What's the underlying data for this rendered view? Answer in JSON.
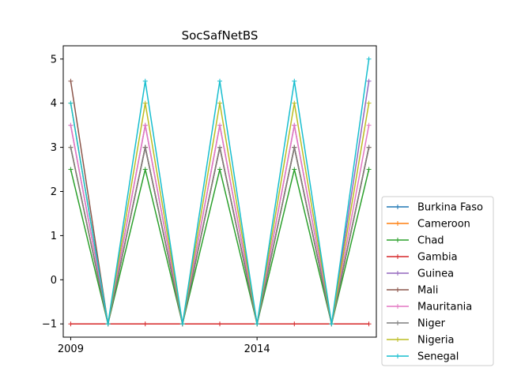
{
  "chart_data": {
    "type": "line",
    "title": "SocSafNetBS",
    "xlabel": "",
    "ylabel": "",
    "x": [
      2009,
      2010,
      2011,
      2012,
      2013,
      2014,
      2015,
      2016,
      2017
    ],
    "x_ticks": [
      2009,
      2014
    ],
    "xlim": [
      2008.8,
      2017.2
    ],
    "ylim": [
      -1.3,
      5.3
    ],
    "y_ticks": [
      -1,
      0,
      1,
      2,
      3,
      4,
      5
    ],
    "y_tick_labels": [
      "−1",
      "0",
      "1",
      "2",
      "3",
      "4",
      "5"
    ],
    "legend_position": "bottom-right outside",
    "marker": "+",
    "series": [
      {
        "name": "Burkina Faso",
        "color": "#1f77b4",
        "values": [
          3.0,
          -1,
          3.0,
          -1,
          3.0,
          -1,
          3.0,
          -1,
          3.0
        ]
      },
      {
        "name": "Cameroon",
        "color": "#ff7f0e",
        "values": [
          3.0,
          -1,
          3.0,
          -1,
          3.0,
          -1,
          3.0,
          -1,
          3.0
        ]
      },
      {
        "name": "Chad",
        "color": "#2ca02c",
        "values": [
          2.5,
          -1,
          2.5,
          -1,
          2.5,
          -1,
          2.5,
          -1,
          2.5
        ]
      },
      {
        "name": "Gambia",
        "color": "#d62728",
        "values": [
          -1,
          -1,
          -1,
          -1,
          -1,
          -1,
          -1,
          -1,
          -1
        ]
      },
      {
        "name": "Guinea",
        "color": "#9467bd",
        "values": [
          3.5,
          -1,
          3.5,
          -1,
          3.5,
          -1,
          3.5,
          -1,
          4.5
        ]
      },
      {
        "name": "Mali",
        "color": "#8c564b",
        "values": [
          4.5,
          -1,
          3.0,
          -1,
          3.0,
          -1,
          3.0,
          -1,
          3.0
        ]
      },
      {
        "name": "Mauritania",
        "color": "#e377c2",
        "values": [
          3.5,
          -1,
          3.5,
          -1,
          3.5,
          -1,
          3.5,
          -1,
          3.5
        ]
      },
      {
        "name": "Niger",
        "color": "#7f7f7f",
        "values": [
          3.0,
          -1,
          3.0,
          -1,
          3.0,
          -1,
          3.0,
          -1,
          3.0
        ]
      },
      {
        "name": "Nigeria",
        "color": "#bcbd22",
        "values": [
          4.0,
          -1,
          4.0,
          -1,
          4.0,
          -1,
          4.0,
          -1,
          4.0
        ]
      },
      {
        "name": "Senegal",
        "color": "#17becf",
        "values": [
          4.0,
          -1,
          4.5,
          -1,
          4.5,
          -1,
          4.5,
          -1,
          5.0
        ]
      }
    ]
  }
}
